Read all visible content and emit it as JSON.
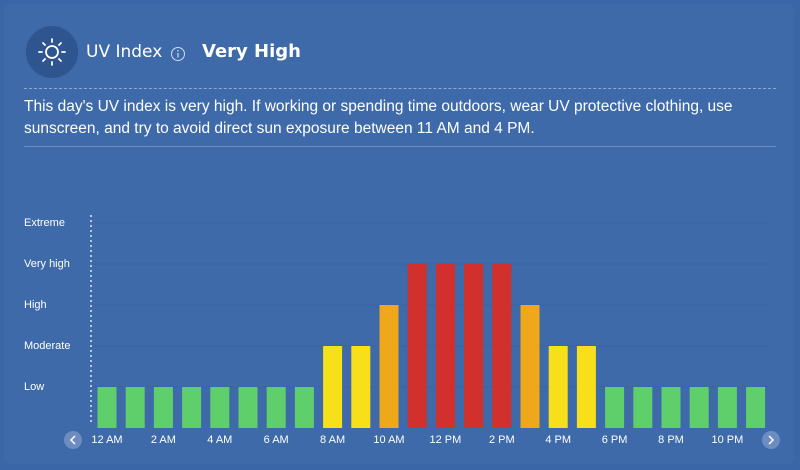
{
  "header": {
    "title": "UV Index",
    "level": "Very High"
  },
  "description": "This day's UV index is very high. If working or spending time outdoors, wear UV protective clothing, use sunscreen, and try to avoid direct sun exposure between 11 AM and 4 PM.",
  "chart_data": {
    "type": "bar",
    "categories": [
      "12 AM",
      null,
      "2 AM",
      null,
      "4 AM",
      null,
      "6 AM",
      null,
      "8 AM",
      null,
      "10 AM",
      null,
      "12 PM",
      null,
      "2 PM",
      null,
      "4 PM",
      null,
      "6 PM",
      null,
      "8 PM",
      null,
      "10 PM",
      null
    ],
    "values": [
      1,
      1,
      1,
      1,
      1,
      1,
      1,
      1,
      2,
      2,
      3,
      4,
      4,
      4,
      4,
      3,
      2,
      2,
      1,
      1,
      1,
      1,
      1,
      1
    ],
    "colors": [
      "#5fcf6c",
      "#5fcf6c",
      "#5fcf6c",
      "#5fcf6c",
      "#5fcf6c",
      "#5fcf6c",
      "#5fcf6c",
      "#5fcf6c",
      "#f7e01a",
      "#f7e01a",
      "#eea81a",
      "#d2302c",
      "#d2302c",
      "#d2302c",
      "#d2302c",
      "#eea81a",
      "#f7e01a",
      "#f7e01a",
      "#5fcf6c",
      "#5fcf6c",
      "#5fcf6c",
      "#5fcf6c",
      "#5fcf6c",
      "#5fcf6c"
    ],
    "ylim": [
      0,
      5
    ],
    "yticks": [
      {
        "value": 1,
        "label": "Low"
      },
      {
        "value": 2,
        "label": "Moderate"
      },
      {
        "value": 3,
        "label": "High"
      },
      {
        "value": 4,
        "label": "Very high"
      },
      {
        "value": 5,
        "label": "Extreme"
      }
    ],
    "grid": true
  }
}
